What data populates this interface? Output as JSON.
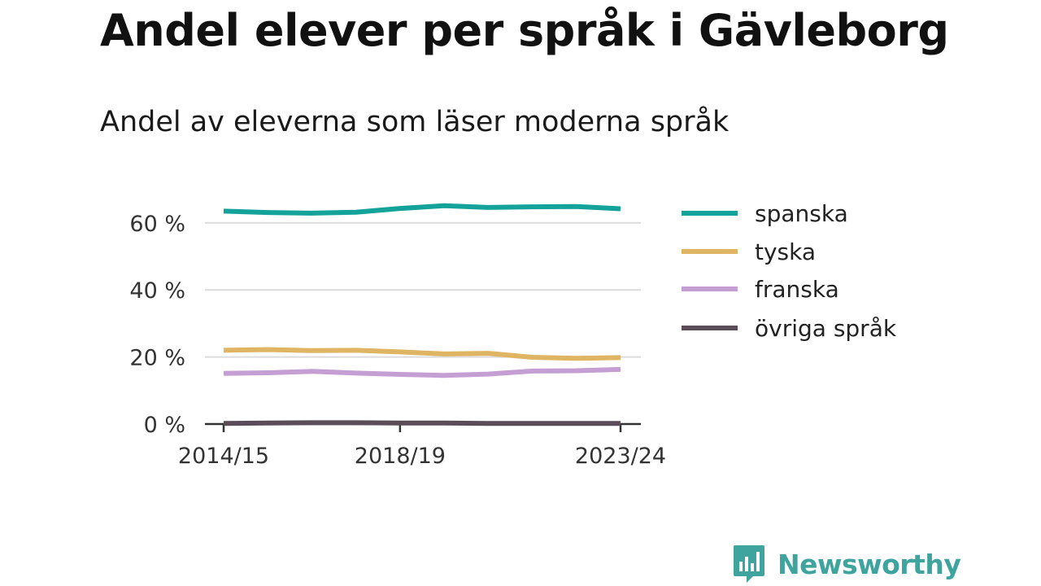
{
  "header": {
    "title": "Andel elever per språk i Gävleborg",
    "subtitle": "Andel av eleverna som läser moderna språk"
  },
  "brand": {
    "name": "Newsworthy",
    "icon": "newsworthy-logo-icon",
    "color": "#3ea49d"
  },
  "chart_data": {
    "type": "line",
    "title": "Andel av eleverna som läser moderna språk",
    "xlabel": "",
    "ylabel": "",
    "x": [
      "2014/15",
      "2015/16",
      "2016/17",
      "2017/18",
      "2018/19",
      "2019/20",
      "2020/21",
      "2021/22",
      "2022/23",
      "2023/24"
    ],
    "x_tick_labels": [
      "2014/15",
      "2018/19",
      "2023/24"
    ],
    "y_tick_labels": [
      "0 %",
      "20 %",
      "40 %",
      "60 %"
    ],
    "y_ticks": [
      0,
      20,
      40,
      60
    ],
    "ylim": [
      0,
      67
    ],
    "grid": true,
    "legend_position": "right",
    "series": [
      {
        "name": "spanska",
        "color": "#14a39a",
        "values": [
          63.5,
          63.1,
          62.9,
          63.2,
          64.3,
          65.1,
          64.6,
          64.8,
          64.9,
          64.2
        ]
      },
      {
        "name": "tyska",
        "color": "#dfb462",
        "values": [
          22.0,
          22.2,
          21.9,
          22.0,
          21.5,
          20.9,
          21.1,
          19.9,
          19.6,
          19.8
        ]
      },
      {
        "name": "franska",
        "color": "#c59fd3",
        "values": [
          15.1,
          15.3,
          15.7,
          15.2,
          14.8,
          14.5,
          14.9,
          15.8,
          15.9,
          16.3
        ]
      },
      {
        "name": "övriga språk",
        "color": "#5a4d58",
        "values": [
          0.2,
          0.3,
          0.4,
          0.4,
          0.3,
          0.3,
          0.2,
          0.2,
          0.2,
          0.2
        ]
      }
    ]
  }
}
